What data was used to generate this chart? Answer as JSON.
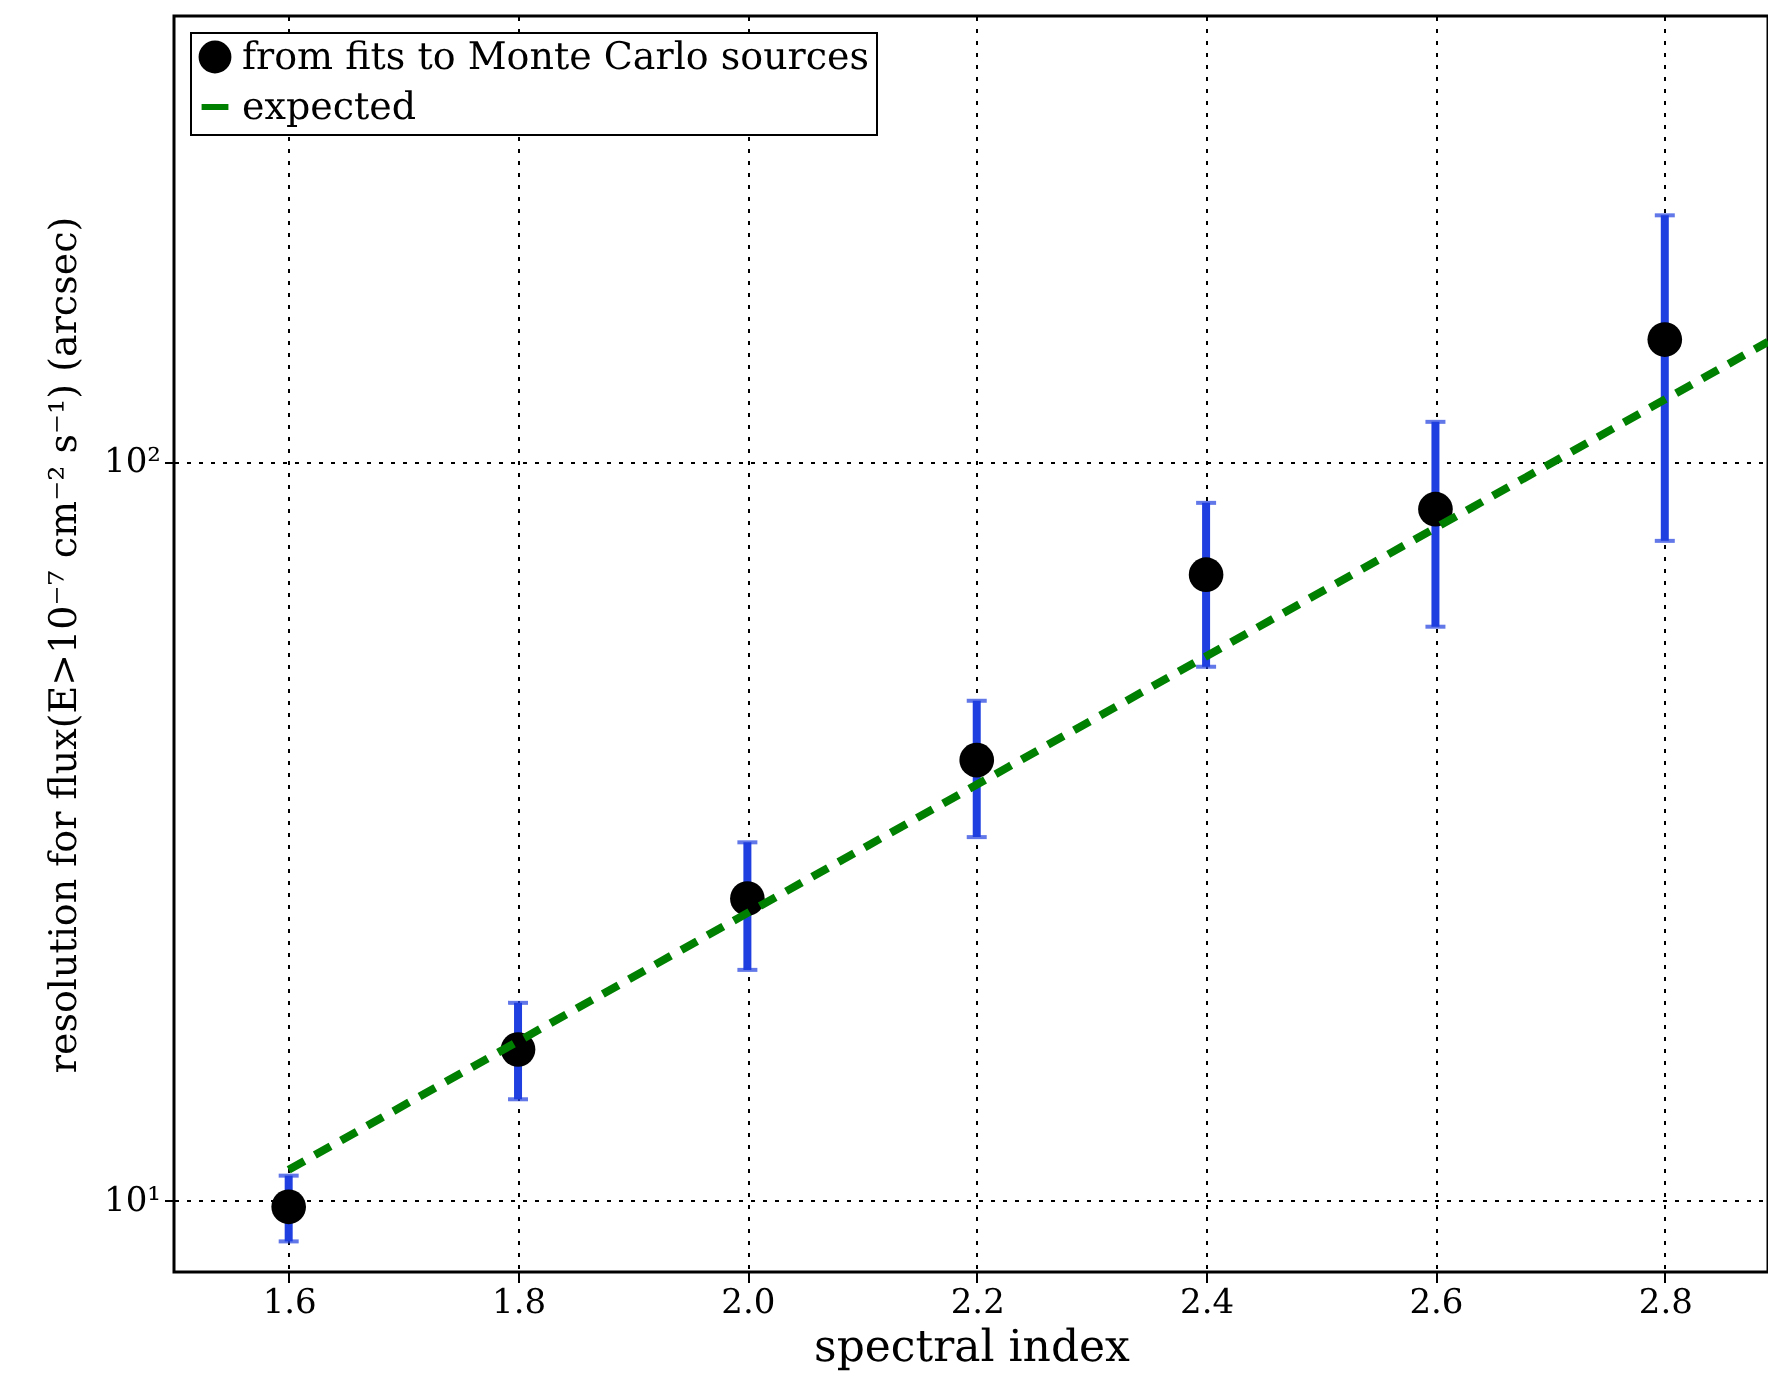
{
  "chart_data": {
    "type": "scatter",
    "xlabel": "spectral index",
    "ylabel": "resolution for flux(E>10⁻⁷ cm⁻² s⁻¹) (arcsec)",
    "log": "y",
    "grid": true,
    "legend": "top left",
    "xlim": [
      1.5,
      2.89
    ],
    "xticks": [
      1.6,
      1.8,
      {
        "value": 2,
        "label": "2.0"
      },
      2.2,
      2.4,
      2.6,
      2.8
    ],
    "ylim": [
      8,
      400
    ],
    "yticks": [
      {
        "value": 10,
        "label": "10¹"
      },
      {
        "value": 100,
        "label": "10²"
      }
    ],
    "series": [
      {
        "name": "from fits to Monte Carlo sources",
        "marker": "circle",
        "color": "#000000",
        "x": [
          1.6,
          1.8,
          2.0,
          2.2,
          2.4,
          2.6,
          2.8
        ],
        "values": [
          9.8,
          16.0,
          25.6,
          39.4,
          70.2,
          86.1,
          146
        ],
        "errors": [
          [
            8.8,
            10.8
          ],
          [
            13.7,
            18.5
          ],
          [
            20.5,
            30.5
          ],
          [
            31.0,
            47.4
          ],
          [
            52.7,
            87.8
          ],
          [
            59.7,
            113
          ],
          [
            78,
            215
          ]
        ]
      },
      {
        "name": "expected",
        "type": "line",
        "marker": "none",
        "color": "#008000",
        "line_style": "dashed",
        "x": [
          1.6,
          2.89
        ],
        "values": [
          11.0,
          145
        ]
      }
    ]
  }
}
